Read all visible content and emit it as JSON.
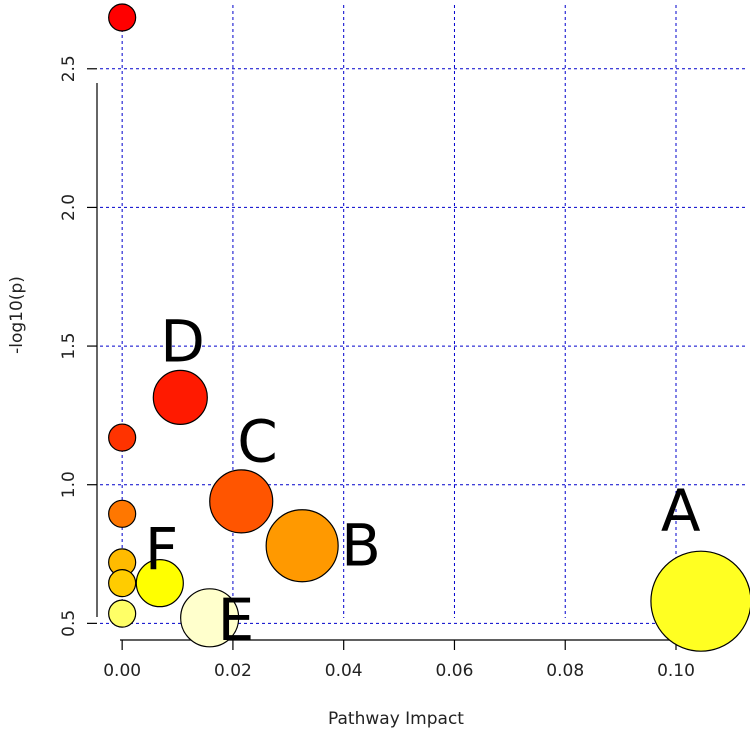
{
  "chart_data": {
    "type": "scatter",
    "title": "",
    "xlabel": "Pathway Impact",
    "ylabel": "-log10(p)",
    "xlim": [
      -0.004,
      0.113
    ],
    "ylim": [
      0.44,
      2.73
    ],
    "xticks": [
      {
        "value": 0.0,
        "label": "0.00"
      },
      {
        "value": 0.02,
        "label": "0.02"
      },
      {
        "value": 0.04,
        "label": "0.04"
      },
      {
        "value": 0.06,
        "label": "0.06"
      },
      {
        "value": 0.08,
        "label": "0.08"
      },
      {
        "value": 0.1,
        "label": "0.10"
      }
    ],
    "yticks": [
      {
        "value": 0.5,
        "label": "0.5"
      },
      {
        "value": 1.0,
        "label": "1.0"
      },
      {
        "value": 1.5,
        "label": "1.5"
      },
      {
        "value": 2.0,
        "label": "2.0"
      },
      {
        "value": 2.5,
        "label": "2.5"
      }
    ],
    "grid": true,
    "grid_color": "#0000cc",
    "points": [
      {
        "x": 0.1045,
        "y": 0.58,
        "size": 1.0,
        "color": "#ffff22",
        "label": "A"
      },
      {
        "x": 0.0325,
        "y": 0.78,
        "size": 0.72,
        "color": "#ff9900",
        "label": "B"
      },
      {
        "x": 0.0215,
        "y": 0.94,
        "size": 0.63,
        "color": "#ff5500",
        "label": "C"
      },
      {
        "x": 0.0105,
        "y": 1.315,
        "size": 0.54,
        "color": "#ff1a00",
        "label": "D"
      },
      {
        "x": 0.0158,
        "y": 0.52,
        "size": 0.58,
        "color": "#ffffcc",
        "label": "E"
      },
      {
        "x": 0.0068,
        "y": 0.645,
        "size": 0.47,
        "color": "#ffff00",
        "label": "F"
      },
      {
        "x": 0.0,
        "y": 2.685,
        "size": 0.27,
        "color": "#ff0000",
        "label": ""
      },
      {
        "x": 0.0,
        "y": 1.17,
        "size": 0.27,
        "color": "#ff3300",
        "label": ""
      },
      {
        "x": 0.0,
        "y": 0.895,
        "size": 0.27,
        "color": "#ff7700",
        "label": ""
      },
      {
        "x": 0.0,
        "y": 0.72,
        "size": 0.27,
        "color": "#ffbb00",
        "label": ""
      },
      {
        "x": 0.0,
        "y": 0.645,
        "size": 0.27,
        "color": "#ffcc00",
        "label": ""
      },
      {
        "x": 0.0,
        "y": 0.535,
        "size": 0.27,
        "color": "#ffff66",
        "label": ""
      }
    ]
  }
}
